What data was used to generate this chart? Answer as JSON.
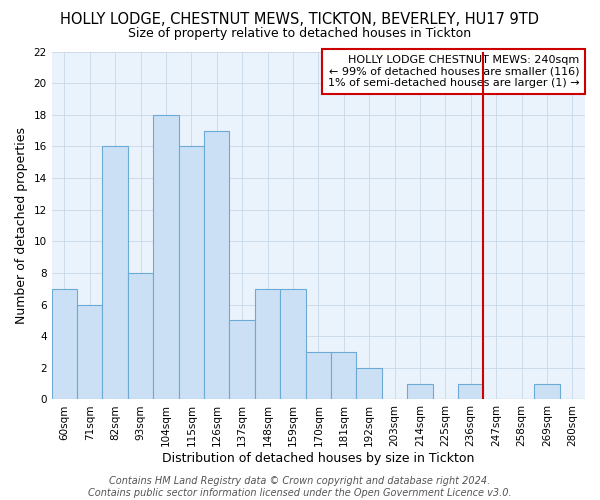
{
  "title": "HOLLY LODGE, CHESTNUT MEWS, TICKTON, BEVERLEY, HU17 9TD",
  "subtitle": "Size of property relative to detached houses in Tickton",
  "xlabel": "Distribution of detached houses by size in Tickton",
  "ylabel": "Number of detached properties",
  "bar_labels": [
    "60sqm",
    "71sqm",
    "82sqm",
    "93sqm",
    "104sqm",
    "115sqm",
    "126sqm",
    "137sqm",
    "148sqm",
    "159sqm",
    "170sqm",
    "181sqm",
    "192sqm",
    "203sqm",
    "214sqm",
    "225sqm",
    "236sqm",
    "247sqm",
    "258sqm",
    "269sqm",
    "280sqm"
  ],
  "bar_values": [
    7,
    6,
    16,
    8,
    18,
    16,
    17,
    5,
    7,
    7,
    3,
    3,
    2,
    0,
    1,
    0,
    1,
    0,
    0,
    1,
    0
  ],
  "bar_color": "#cce0f5",
  "bar_edge_color": "#6aaad4",
  "vline_x_index": 16.5,
  "vline_color": "#cc0000",
  "ylim": [
    0,
    22
  ],
  "yticks": [
    0,
    2,
    4,
    6,
    8,
    10,
    12,
    14,
    16,
    18,
    20,
    22
  ],
  "annotation_box_text": "HOLLY LODGE CHESTNUT MEWS: 240sqm\n← 99% of detached houses are smaller (116)\n1% of semi-detached houses are larger (1) →",
  "annotation_box_color": "#cc0000",
  "footer_text": "Contains HM Land Registry data © Crown copyright and database right 2024.\nContains public sector information licensed under the Open Government Licence v3.0.",
  "fig_bg_color": "#ffffff",
  "plot_bg_color": "#eaf2fb",
  "grid_color": "#c8d8e8",
  "title_fontsize": 10.5,
  "subtitle_fontsize": 9,
  "axis_label_fontsize": 9,
  "tick_fontsize": 7.5,
  "footer_fontsize": 7,
  "ann_fontsize": 8
}
